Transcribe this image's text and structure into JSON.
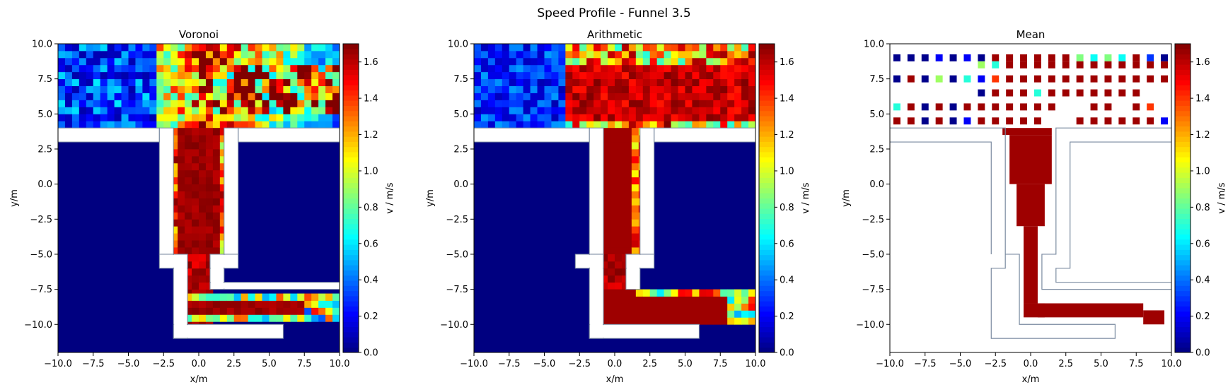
{
  "figure": {
    "suptitle": "Speed Profile - Funnel  3.5"
  },
  "chart_data": [
    {
      "type": "heatmap",
      "title": "Voronoi",
      "xlabel": "x/m",
      "ylabel": "y/m",
      "xlim": [
        -10,
        10
      ],
      "ylim": [
        -12,
        10
      ],
      "xticks": [
        "−10.0",
        "−7.5",
        "−5.0",
        "−2.5",
        "0.0",
        "2.5",
        "5.0",
        "7.5",
        "10.0"
      ],
      "yticks": [
        "−10.0",
        "−7.5",
        "−5.0",
        "−2.5",
        "0.0",
        "2.5",
        "5.0",
        "7.5",
        "10.0"
      ],
      "colorbar": {
        "label": "v / m/s",
        "range": [
          0,
          1.7
        ],
        "ticks": [
          "0.0",
          "0.2",
          "0.4",
          "0.6",
          "0.8",
          "1.0",
          "1.2",
          "1.4",
          "1.6"
        ],
        "colormap": "jet"
      },
      "background_value": 0,
      "wall_fill": "#ffffff",
      "wall_edge": "#7a8aa0",
      "regions": [
        {
          "name": "top-area",
          "x": [
            -10,
            10
          ],
          "y": [
            4,
            10
          ],
          "profile": "top-mixed"
        },
        {
          "name": "upper-corridor",
          "x": [
            -2.0,
            1.8
          ],
          "y": [
            -5,
            4
          ],
          "profile": "corridor-core"
        },
        {
          "name": "narrow-gap",
          "x": [
            -1.0,
            0.8
          ],
          "y": [
            -10,
            -5
          ],
          "profile": "high"
        },
        {
          "name": "lower-corridor",
          "x": [
            -1.0,
            10
          ],
          "y": [
            -9.8,
            -7.8
          ],
          "profile": "lower-mixed"
        }
      ],
      "walls": [
        {
          "x": [
            -10,
            -2.8
          ],
          "y": [
            3.0,
            4.0
          ]
        },
        {
          "x": [
            -2.8,
            -1.8
          ],
          "y": [
            -5,
            4.0
          ]
        },
        {
          "x": [
            -2.8,
            -0.8
          ],
          "y": [
            -6,
            -5
          ]
        },
        {
          "x": [
            -1.8,
            -0.8
          ],
          "y": [
            -11,
            -5
          ]
        },
        {
          "x": [
            -1.8,
            6.0
          ],
          "y": [
            -11,
            -10
          ]
        },
        {
          "x": [
            1.8,
            2.8
          ],
          "y": [
            -5,
            4.0
          ]
        },
        {
          "x": [
            2.8,
            10
          ],
          "y": [
            3.0,
            4.0
          ]
        },
        {
          "x": [
            0.8,
            2.8
          ],
          "y": [
            -6,
            -5
          ]
        },
        {
          "x": [
            0.8,
            1.8
          ],
          "y": [
            -7.5,
            -5
          ]
        },
        {
          "x": [
            0.8,
            10
          ],
          "y": [
            -7.5,
            -7.0
          ]
        }
      ]
    },
    {
      "type": "heatmap",
      "title": "Arithmetic",
      "xlabel": "x/m",
      "ylabel": "y/m",
      "xlim": [
        -10,
        10
      ],
      "ylim": [
        -12,
        10
      ],
      "xticks": [
        "−10.0",
        "−7.5",
        "−5.0",
        "−2.5",
        "0.0",
        "2.5",
        "5.0",
        "7.5",
        "10.0"
      ],
      "yticks": [
        "−10.0",
        "−7.5",
        "−5.0",
        "−2.5",
        "0.0",
        "2.5",
        "5.0",
        "7.5",
        "10.0"
      ],
      "colorbar": {
        "label": "v / m/s",
        "range": [
          0,
          1.7
        ],
        "ticks": [
          "0.0",
          "0.2",
          "0.4",
          "0.6",
          "0.8",
          "1.0",
          "1.2",
          "1.4",
          "1.6"
        ],
        "colormap": "jet"
      },
      "background_value": 0,
      "wall_fill": "#ffffff",
      "wall_edge": "#7a8aa0",
      "regions": [
        {
          "name": "top-area",
          "x": [
            -10,
            10
          ],
          "y": [
            4,
            10
          ],
          "profile": "top-high"
        },
        {
          "name": "upper-corridor",
          "x": [
            -1.8,
            1.8
          ],
          "y": [
            -5,
            4
          ],
          "profile": "corridor-solid"
        },
        {
          "name": "narrow-gap",
          "x": [
            -1.0,
            0.8
          ],
          "y": [
            -10,
            -5
          ],
          "profile": "high"
        },
        {
          "name": "lower-corridor",
          "x": [
            -1.0,
            10
          ],
          "y": [
            -10,
            -7.5
          ],
          "profile": "lower-high"
        }
      ],
      "walls": [
        {
          "x": [
            -10,
            -1.8
          ],
          "y": [
            3.0,
            4.0
          ]
        },
        {
          "x": [
            -1.8,
            -0.8
          ],
          "y": [
            -5,
            4.0
          ]
        },
        {
          "x": [
            -2.8,
            -0.8
          ],
          "y": [
            -6,
            -5
          ]
        },
        {
          "x": [
            -1.8,
            -0.8
          ],
          "y": [
            -11,
            -5
          ]
        },
        {
          "x": [
            -1.8,
            6.0
          ],
          "y": [
            -11,
            -10
          ]
        },
        {
          "x": [
            1.8,
            2.8
          ],
          "y": [
            -5,
            4.0
          ]
        },
        {
          "x": [
            2.8,
            10
          ],
          "y": [
            3.0,
            4.0
          ]
        },
        {
          "x": [
            0.8,
            2.8
          ],
          "y": [
            -6,
            -5
          ]
        },
        {
          "x": [
            0.8,
            1.8
          ],
          "y": [
            -7.5,
            -5
          ]
        }
      ]
    },
    {
      "type": "heatmap",
      "title": "Mean",
      "xlabel": "x/m",
      "ylabel": "y/m",
      "xlim": [
        -10,
        10
      ],
      "ylim": [
        -12,
        10
      ],
      "xticks": [
        "−10.0",
        "−7.5",
        "−5.0",
        "−2.5",
        "0.0",
        "2.5",
        "5.0",
        "7.5",
        "10.0"
      ],
      "yticks": [
        "−10.0",
        "−7.5",
        "−5.0",
        "−2.5",
        "0.0",
        "2.5",
        "5.0",
        "7.5",
        "10.0"
      ],
      "colorbar": {
        "label": "v / m/s",
        "range": [
          0,
          1.7
        ],
        "ticks": [
          "0.0",
          "0.2",
          "0.4",
          "0.6",
          "0.8",
          "1.0",
          "1.2",
          "1.4",
          "1.6"
        ],
        "colormap": "jet"
      },
      "background_value": null,
      "wall_edge": "#7a8aa0",
      "outline_only": true,
      "outline_paths": [
        [
          [
            -10,
            4.0
          ],
          [
            -1.8,
            4.0
          ],
          [
            -1.8,
            -6.0
          ],
          [
            -2.8,
            -6.0
          ],
          [
            -2.8,
            -11.0
          ],
          [
            6.0,
            -11.0
          ],
          [
            6.0,
            -10.0
          ],
          [
            -0.8,
            -10.0
          ],
          [
            -0.8,
            -5.0
          ],
          [
            -1.8,
            -5.0
          ],
          [
            -1.8,
            4.0
          ]
        ],
        [
          [
            -10,
            3.0
          ],
          [
            -2.8,
            3.0
          ],
          [
            -2.8,
            -5.0
          ]
        ],
        [
          [
            10,
            4.0
          ],
          [
            1.8,
            4.0
          ],
          [
            1.8,
            -5.0
          ],
          [
            0.8,
            -5.0
          ],
          [
            0.8,
            -7.5
          ],
          [
            10,
            -7.5
          ]
        ],
        [
          [
            10,
            3.0
          ],
          [
            2.8,
            3.0
          ],
          [
            2.8,
            -6.0
          ],
          [
            1.8,
            -6.0
          ],
          [
            1.8,
            -7.0
          ],
          [
            10,
            -7.0
          ]
        ]
      ],
      "cells": [
        {
          "x": -9.5,
          "y": 9.0,
          "v": 0.02
        },
        {
          "x": -8.5,
          "y": 9.0,
          "v": 0.02
        },
        {
          "x": -7.5,
          "y": 9.0,
          "v": 0.02
        },
        {
          "x": -6.5,
          "y": 9.0,
          "v": 0.2
        },
        {
          "x": -5.5,
          "y": 9.0,
          "v": 0.02
        },
        {
          "x": -4.5,
          "y": 9.0,
          "v": 0.2
        },
        {
          "x": -3.5,
          "y": 9.0,
          "v": 0.02
        },
        {
          "x": -2.5,
          "y": 9.0,
          "v": 1.65
        },
        {
          "x": -1.5,
          "y": 9.0,
          "v": 1.65
        },
        {
          "x": -0.5,
          "y": 9.0,
          "v": 1.65
        },
        {
          "x": 0.5,
          "y": 9.0,
          "v": 1.65
        },
        {
          "x": 1.5,
          "y": 9.0,
          "v": 1.65
        },
        {
          "x": 2.5,
          "y": 9.0,
          "v": 1.65
        },
        {
          "x": 3.5,
          "y": 9.0,
          "v": 0.85
        },
        {
          "x": 4.5,
          "y": 9.0,
          "v": 0.65
        },
        {
          "x": 5.5,
          "y": 9.0,
          "v": 0.85
        },
        {
          "x": 6.5,
          "y": 9.0,
          "v": 0.65
        },
        {
          "x": 7.5,
          "y": 9.0,
          "v": 1.65
        },
        {
          "x": 8.5,
          "y": 9.0,
          "v": 0.3
        },
        {
          "x": 9.5,
          "y": 9.0,
          "v": 0.02
        },
        {
          "x": -3.5,
          "y": 8.5,
          "v": 0.9
        },
        {
          "x": -2.5,
          "y": 8.5,
          "v": 0.7
        },
        {
          "x": -1.5,
          "y": 8.5,
          "v": 1.65
        },
        {
          "x": -0.5,
          "y": 8.5,
          "v": 1.65
        },
        {
          "x": 0.5,
          "y": 8.5,
          "v": 1.65
        },
        {
          "x": 1.5,
          "y": 8.5,
          "v": 1.65
        },
        {
          "x": 2.5,
          "y": 8.5,
          "v": 1.65
        },
        {
          "x": 3.5,
          "y": 8.5,
          "v": 1.65
        },
        {
          "x": 4.5,
          "y": 8.5,
          "v": 1.65
        },
        {
          "x": 5.5,
          "y": 8.5,
          "v": 1.65
        },
        {
          "x": 6.5,
          "y": 8.5,
          "v": 1.65
        },
        {
          "x": 7.5,
          "y": 8.5,
          "v": 1.65
        },
        {
          "x": 8.5,
          "y": 8.5,
          "v": 1.65
        },
        {
          "x": 9.5,
          "y": 8.5,
          "v": 1.65
        },
        {
          "x": -9.5,
          "y": 7.5,
          "v": 0.02
        },
        {
          "x": -8.5,
          "y": 7.5,
          "v": 1.65
        },
        {
          "x": -7.5,
          "y": 7.5,
          "v": 0.02
        },
        {
          "x": -6.5,
          "y": 7.5,
          "v": 0.9
        },
        {
          "x": -5.5,
          "y": 7.5,
          "v": 0.02
        },
        {
          "x": -4.5,
          "y": 7.5,
          "v": 0.7
        },
        {
          "x": -3.5,
          "y": 7.5,
          "v": 0.2
        },
        {
          "x": -2.5,
          "y": 7.5,
          "v": 1.4
        },
        {
          "x": -1.5,
          "y": 7.5,
          "v": 1.65
        },
        {
          "x": -0.5,
          "y": 7.5,
          "v": 1.65
        },
        {
          "x": 0.5,
          "y": 7.5,
          "v": 1.65
        },
        {
          "x": 1.5,
          "y": 7.5,
          "v": 1.65
        },
        {
          "x": 2.5,
          "y": 7.5,
          "v": 1.65
        },
        {
          "x": 3.5,
          "y": 7.5,
          "v": 1.65
        },
        {
          "x": 4.5,
          "y": 7.5,
          "v": 1.65
        },
        {
          "x": 5.5,
          "y": 7.5,
          "v": 1.65
        },
        {
          "x": 6.5,
          "y": 7.5,
          "v": 1.65
        },
        {
          "x": 7.5,
          "y": 7.5,
          "v": 1.65
        },
        {
          "x": 8.5,
          "y": 7.5,
          "v": 1.65
        },
        {
          "x": 9.5,
          "y": 7.5,
          "v": 1.65
        },
        {
          "x": -3.5,
          "y": 6.5,
          "v": 0.02
        },
        {
          "x": -2.5,
          "y": 6.5,
          "v": 1.65
        },
        {
          "x": -1.5,
          "y": 6.5,
          "v": 1.65
        },
        {
          "x": -0.5,
          "y": 6.5,
          "v": 1.65
        },
        {
          "x": 0.5,
          "y": 6.5,
          "v": 0.7
        },
        {
          "x": 1.5,
          "y": 6.5,
          "v": 1.65
        },
        {
          "x": 2.5,
          "y": 6.5,
          "v": 1.65
        },
        {
          "x": 3.5,
          "y": 6.5,
          "v": 1.65
        },
        {
          "x": 4.5,
          "y": 6.5,
          "v": 1.65
        },
        {
          "x": 5.5,
          "y": 6.5,
          "v": 1.65
        },
        {
          "x": 6.5,
          "y": 6.5,
          "v": 1.65
        },
        {
          "x": 7.5,
          "y": 6.5,
          "v": 1.65
        },
        {
          "x": -9.5,
          "y": 5.5,
          "v": 0.7
        },
        {
          "x": -8.5,
          "y": 5.5,
          "v": 1.65
        },
        {
          "x": -7.5,
          "y": 5.5,
          "v": 0.02
        },
        {
          "x": -6.5,
          "y": 5.5,
          "v": 1.65
        },
        {
          "x": -5.5,
          "y": 5.5,
          "v": 0.02
        },
        {
          "x": -4.5,
          "y": 5.5,
          "v": 1.65
        },
        {
          "x": -3.5,
          "y": 5.5,
          "v": 1.65
        },
        {
          "x": -2.5,
          "y": 5.5,
          "v": 1.65
        },
        {
          "x": -1.5,
          "y": 5.5,
          "v": 1.65
        },
        {
          "x": -0.5,
          "y": 5.5,
          "v": 1.65
        },
        {
          "x": 0.5,
          "y": 5.5,
          "v": 1.65
        },
        {
          "x": 1.5,
          "y": 5.5,
          "v": 1.65
        },
        {
          "x": 4.5,
          "y": 5.5,
          "v": 1.65
        },
        {
          "x": 5.5,
          "y": 5.5,
          "v": 1.65
        },
        {
          "x": 7.5,
          "y": 5.5,
          "v": 1.65
        },
        {
          "x": 8.5,
          "y": 5.5,
          "v": 1.4
        },
        {
          "x": -9.5,
          "y": 4.5,
          "v": 1.65
        },
        {
          "x": -8.5,
          "y": 4.5,
          "v": 1.65
        },
        {
          "x": -7.5,
          "y": 4.5,
          "v": 0.02
        },
        {
          "x": -6.5,
          "y": 4.5,
          "v": 1.65
        },
        {
          "x": -5.5,
          "y": 4.5,
          "v": 0.02
        },
        {
          "x": -4.5,
          "y": 4.5,
          "v": 0.2
        },
        {
          "x": -3.5,
          "y": 4.5,
          "v": 1.65
        },
        {
          "x": -2.5,
          "y": 4.5,
          "v": 1.65
        },
        {
          "x": -1.5,
          "y": 4.5,
          "v": 1.65
        },
        {
          "x": -0.5,
          "y": 4.5,
          "v": 1.65
        },
        {
          "x": 0.5,
          "y": 4.5,
          "v": 1.65
        },
        {
          "x": 3.5,
          "y": 4.5,
          "v": 1.65
        },
        {
          "x": 4.5,
          "y": 4.5,
          "v": 1.65
        },
        {
          "x": 5.5,
          "y": 4.5,
          "v": 1.65
        },
        {
          "x": 6.5,
          "y": 4.5,
          "v": 1.65
        },
        {
          "x": 7.5,
          "y": 4.5,
          "v": 1.65
        },
        {
          "x": 8.5,
          "y": 4.5,
          "v": 1.65
        },
        {
          "x": 9.5,
          "y": 4.5,
          "v": 0.2
        }
      ],
      "shapes": [
        {
          "x": [
            -2.0,
            1.5
          ],
          "y": [
            3.5,
            4.0
          ],
          "v": 1.65
        },
        {
          "x": [
            -1.5,
            1.5
          ],
          "y": [
            0.0,
            3.5
          ],
          "v": 1.65
        },
        {
          "x": [
            -1.0,
            1.0
          ],
          "y": [
            -3.0,
            0.0
          ],
          "v": 1.65
        },
        {
          "x": [
            -0.5,
            0.5
          ],
          "y": [
            -8.5,
            -3.0
          ],
          "v": 1.65
        },
        {
          "x": [
            -0.5,
            1.0
          ],
          "y": [
            -9.5,
            -8.5
          ],
          "v": 1.65
        },
        {
          "x": [
            0.5,
            8.0
          ],
          "y": [
            -9.5,
            -8.5
          ],
          "v": 1.65
        },
        {
          "x": [
            8.0,
            9.5
          ],
          "y": [
            -10.0,
            -9.0
          ],
          "v": 1.65
        }
      ]
    }
  ]
}
